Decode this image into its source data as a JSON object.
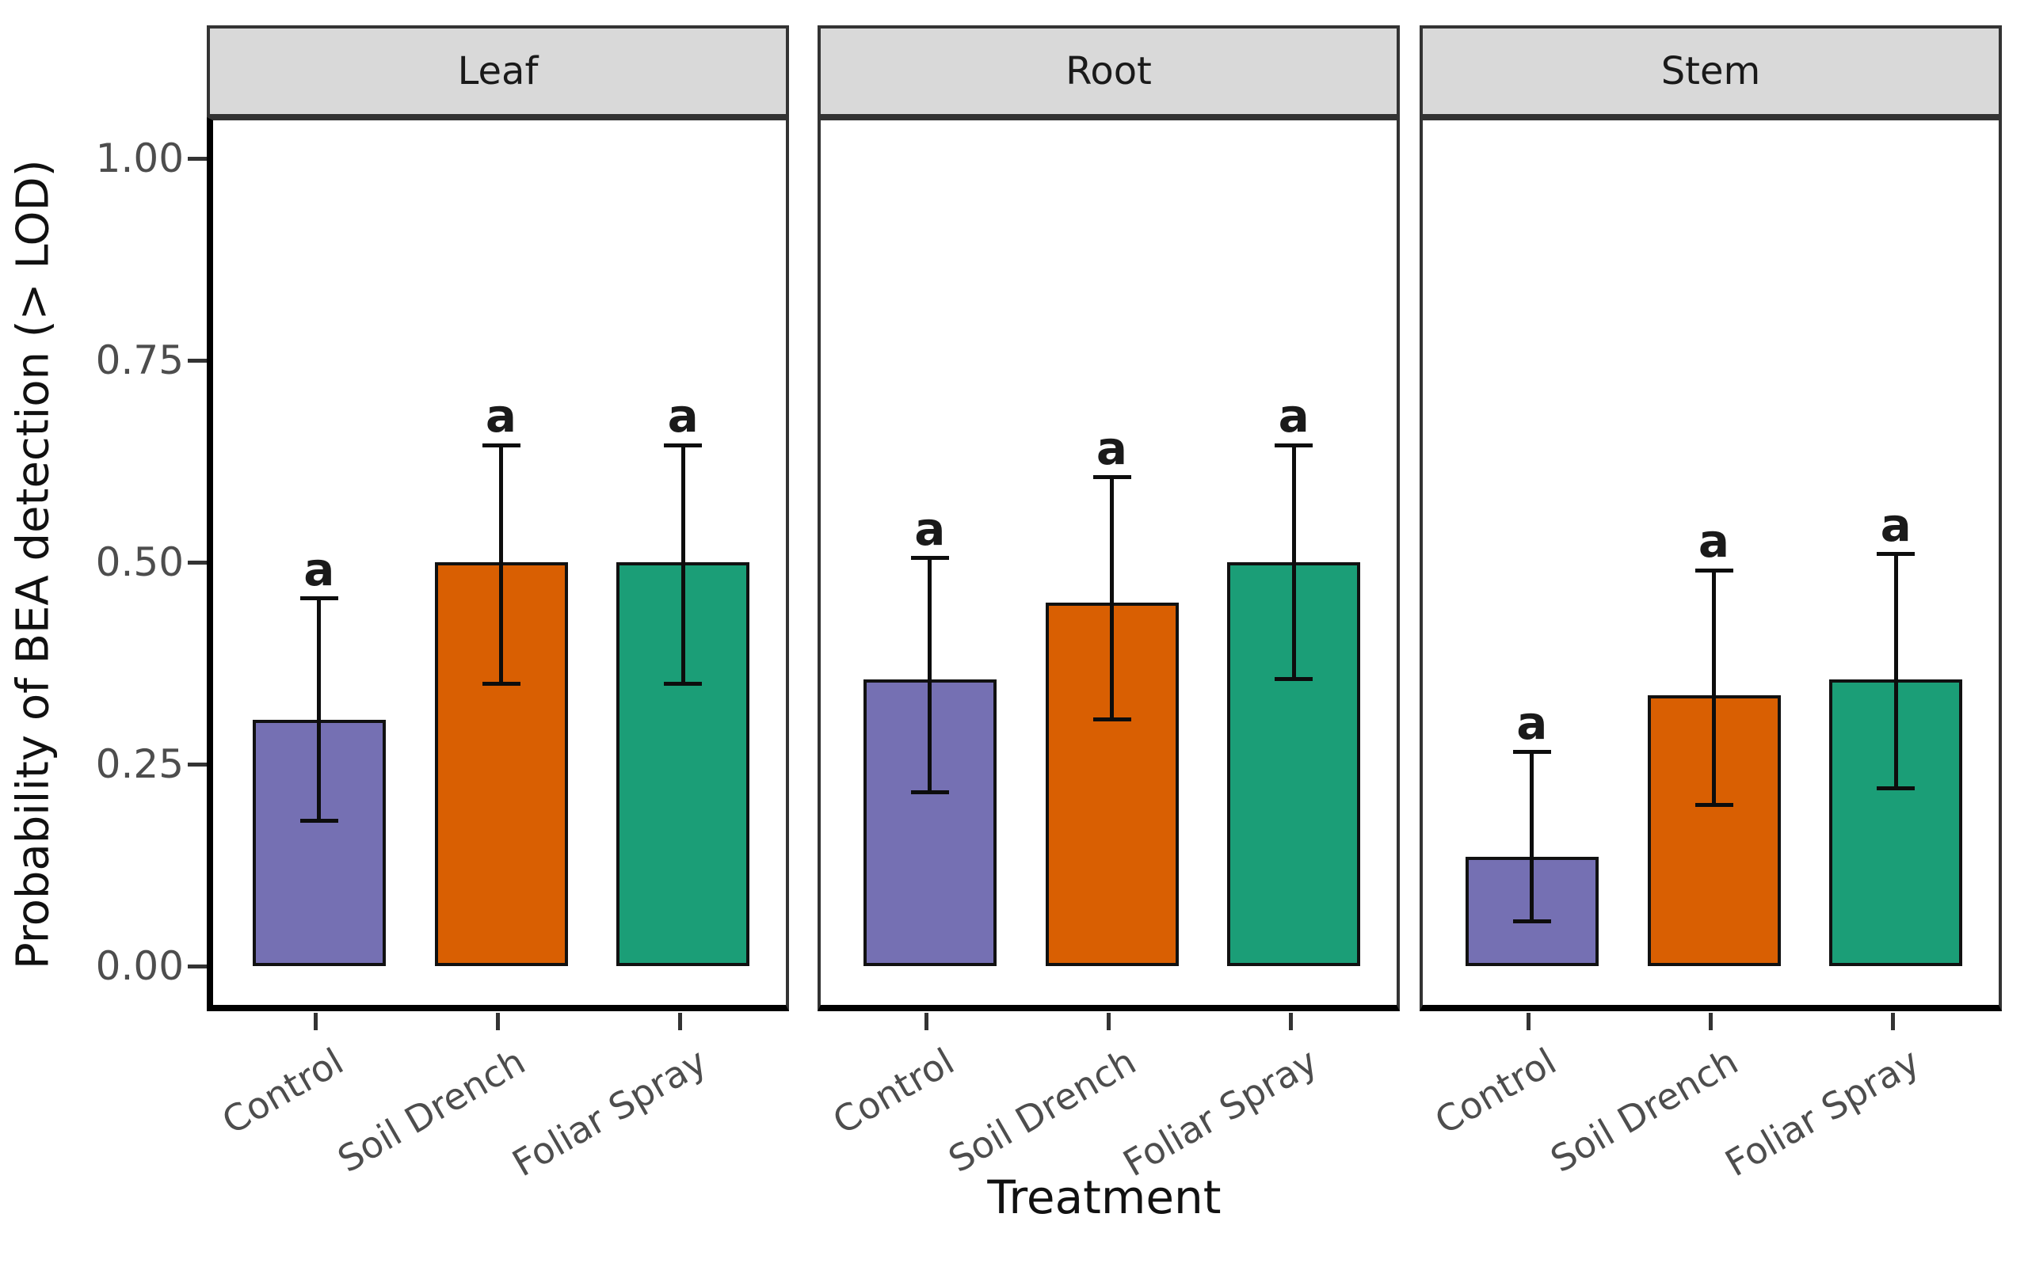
{
  "chart_data": {
    "type": "bar",
    "title": "",
    "xlabel": "Treatment",
    "ylabel": "Probability of BEA detection (> LOD)",
    "categories": [
      "Control",
      "Soil Drench",
      "Foliar Spray"
    ],
    "facet_labels": [
      "Leaf",
      "Root",
      "Stem"
    ],
    "ylim": [
      0,
      1.05
    ],
    "y_ticks": [
      1.0,
      0.75,
      0.5,
      0.25,
      0.0
    ],
    "y_tick_labels": [
      "1.00",
      "0.75",
      "0.50",
      "0.25",
      "0.00"
    ],
    "grid": false,
    "legend_position": "none",
    "bar_colors": [
      "#7570B3",
      "#D95F02",
      "#1B9E77"
    ],
    "significance_letter": "a",
    "error_bar_style": "vertical line with caps",
    "facets": [
      {
        "label": "Leaf",
        "bars": [
          {
            "category": "Control",
            "value": 0.305,
            "error_low": 0.18,
            "error_high": 0.455,
            "letter": "a",
            "color": "#7570B3"
          },
          {
            "category": "Soil Drench",
            "value": 0.5,
            "error_low": 0.35,
            "error_high": 0.645,
            "letter": "a",
            "color": "#D95F02"
          },
          {
            "category": "Foliar Spray",
            "value": 0.5,
            "error_low": 0.35,
            "error_high": 0.645,
            "letter": "a",
            "color": "#1B9E77"
          }
        ]
      },
      {
        "label": "Root",
        "bars": [
          {
            "category": "Control",
            "value": 0.355,
            "error_low": 0.215,
            "error_high": 0.505,
            "letter": "a",
            "color": "#7570B3"
          },
          {
            "category": "Soil Drench",
            "value": 0.45,
            "error_low": 0.305,
            "error_high": 0.605,
            "letter": "a",
            "color": "#D95F02"
          },
          {
            "category": "Foliar Spray",
            "value": 0.5,
            "error_low": 0.355,
            "error_high": 0.645,
            "letter": "a",
            "color": "#1B9E77"
          }
        ]
      },
      {
        "label": "Stem",
        "bars": [
          {
            "category": "Control",
            "value": 0.135,
            "error_low": 0.055,
            "error_high": 0.265,
            "letter": "a",
            "color": "#7570B3"
          },
          {
            "category": "Soil Drench",
            "value": 0.335,
            "error_low": 0.2,
            "error_high": 0.49,
            "letter": "a",
            "color": "#D95F02"
          },
          {
            "category": "Foliar Spray",
            "value": 0.355,
            "error_low": 0.22,
            "error_high": 0.51,
            "letter": "a",
            "color": "#1B9E77"
          }
        ]
      }
    ],
    "colors": {
      "strip_background": "#d9d9d9",
      "panel_border": "#333333",
      "axis_line": "#000000",
      "tick_label": "#4d4d4d",
      "text": "#111111"
    }
  }
}
